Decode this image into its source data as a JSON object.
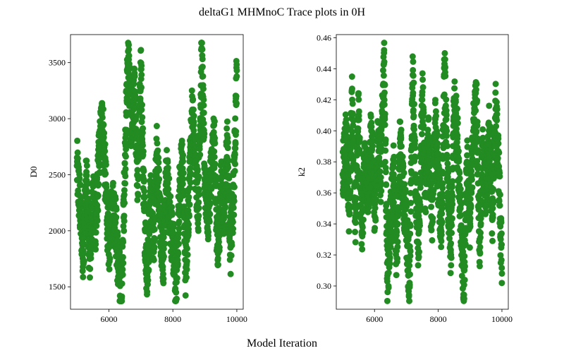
{
  "figure": {
    "title": "deltaG1 MHMnoC Trace plots in 0H",
    "xlabel": "Model Iteration",
    "marker_color": "#228b22"
  },
  "chart_data": [
    {
      "type": "scatter",
      "ylabel": "D0",
      "xlim": [
        4800,
        10200
      ],
      "ylim": [
        1300,
        3750
      ],
      "xticks": [
        6000,
        8000,
        10000
      ],
      "yticks": [
        1500,
        2000,
        2500,
        3000,
        3500
      ],
      "series": [
        {
          "color": "#228b22",
          "x": [
            5000,
            5100,
            5200,
            5300,
            5400,
            5500,
            5600,
            5700,
            5800,
            5900,
            6000,
            6100,
            6200,
            6300,
            6400,
            6500,
            6600,
            6700,
            6800,
            6900,
            7000,
            7100,
            7200,
            7300,
            7400,
            7500,
            7600,
            7700,
            7800,
            7900,
            8000,
            8100,
            8200,
            8300,
            8400,
            8500,
            8600,
            8700,
            8800,
            8900,
            9000,
            9100,
            9200,
            9300,
            9400,
            9500,
            9600,
            9700,
            9800,
            9900,
            10000
          ],
          "y": [
            2580,
            2200,
            1820,
            2450,
            1750,
            2300,
            2050,
            2700,
            3010,
            2400,
            1850,
            2250,
            2100,
            1650,
            1400,
            2600,
            3600,
            2900,
            3200,
            2400,
            3440,
            2200,
            1550,
            2350,
            1900,
            2700,
            2100,
            1750,
            2500,
            2150,
            1900,
            1450,
            2300,
            2650,
            1620,
            2300,
            3050,
            2600,
            2250,
            3630,
            2450,
            2150,
            2550,
            2800,
            1700,
            2400,
            2150,
            2800,
            1850,
            2300,
            3430
          ]
        }
      ]
    },
    {
      "type": "scatter",
      "ylabel": "k2",
      "xlim": [
        4800,
        10200
      ],
      "ylim": [
        0.285,
        0.462
      ],
      "xticks": [
        6000,
        8000,
        10000
      ],
      "yticks": [
        0.3,
        0.32,
        0.34,
        0.36,
        0.38,
        0.4,
        0.42,
        0.44,
        0.46
      ],
      "series": [
        {
          "color": "#228b22",
          "x": [
            5000,
            5100,
            5200,
            5300,
            5400,
            5500,
            5600,
            5700,
            5800,
            5900,
            6000,
            6100,
            6200,
            6300,
            6400,
            6500,
            6600,
            6700,
            6800,
            6900,
            7000,
            7100,
            7200,
            7300,
            7400,
            7500,
            7600,
            7700,
            7800,
            7900,
            8000,
            8100,
            8200,
            8300,
            8400,
            8500,
            8600,
            8700,
            8800,
            8900,
            9000,
            9100,
            9200,
            9300,
            9400,
            9500,
            9600,
            9700,
            9800,
            9900,
            10000
          ],
          "y": [
            0.372,
            0.395,
            0.352,
            0.42,
            0.345,
            0.41,
            0.333,
            0.385,
            0.358,
            0.4,
            0.345,
            0.395,
            0.37,
            0.452,
            0.303,
            0.34,
            0.372,
            0.318,
            0.395,
            0.36,
            0.338,
            0.302,
            0.436,
            0.355,
            0.322,
            0.425,
            0.36,
            0.395,
            0.34,
            0.405,
            0.37,
            0.335,
            0.44,
            0.36,
            0.32,
            0.42,
            0.395,
            0.35,
            0.291,
            0.38,
            0.34,
            0.4,
            0.418,
            0.33,
            0.385,
            0.36,
            0.4,
            0.345,
            0.414,
            0.375,
            0.308
          ]
        }
      ]
    }
  ]
}
